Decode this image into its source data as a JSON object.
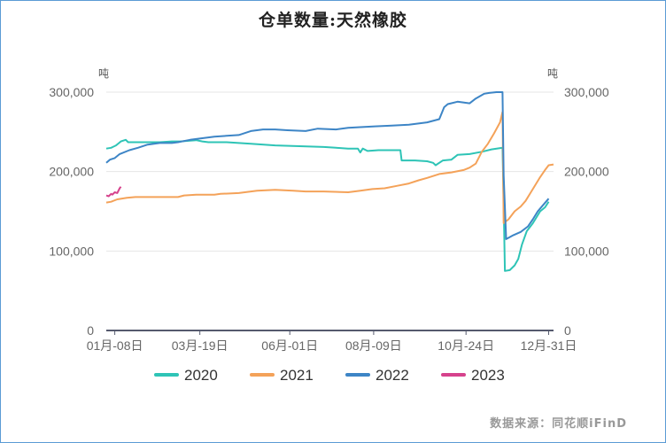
{
  "chart_data": {
    "type": "line",
    "title": "仓单数量:天然橡胶",
    "y_unit_left": "吨",
    "y_unit_right": "吨",
    "ylim": [
      0,
      300000
    ],
    "y_ticks": [
      "0",
      "100,000",
      "200,000",
      "300,000"
    ],
    "x_ticks": [
      "01月-08日",
      "03月-19日",
      "06月-01日",
      "08月-09日",
      "10月-24日",
      "12月-31日"
    ],
    "x_tick_days": [
      8,
      78,
      152,
      221,
      297,
      365
    ],
    "legend_position": "bottom",
    "grid": true,
    "source": "数据来源：同花顺iFinD",
    "series": [
      {
        "name": "2020",
        "color": "#2ec4b6",
        "points": [
          [
            1,
            229000
          ],
          [
            5,
            230000
          ],
          [
            9,
            233000
          ],
          [
            13,
            238000
          ],
          [
            17,
            240000
          ],
          [
            19,
            237000
          ],
          [
            25,
            237000
          ],
          [
            35,
            237000
          ],
          [
            45,
            237000
          ],
          [
            55,
            238000
          ],
          [
            62,
            238000
          ],
          [
            70,
            239000
          ],
          [
            75,
            239500
          ],
          [
            80,
            238000
          ],
          [
            85,
            237000
          ],
          [
            100,
            237000
          ],
          [
            120,
            235000
          ],
          [
            140,
            233000
          ],
          [
            160,
            232000
          ],
          [
            180,
            231000
          ],
          [
            190,
            230000
          ],
          [
            200,
            229000
          ],
          [
            208,
            229000
          ],
          [
            210,
            224000
          ],
          [
            212,
            229000
          ],
          [
            216,
            226000
          ],
          [
            225,
            227000
          ],
          [
            235,
            227000
          ],
          [
            243,
            227000
          ],
          [
            244,
            214000
          ],
          [
            255,
            214000
          ],
          [
            265,
            213000
          ],
          [
            270,
            211000
          ],
          [
            272,
            208000
          ],
          [
            278,
            214000
          ],
          [
            285,
            215000
          ],
          [
            290,
            221000
          ],
          [
            300,
            222000
          ],
          [
            310,
            225000
          ],
          [
            318,
            228000
          ],
          [
            327,
            230000
          ],
          [
            328,
            160000
          ],
          [
            329,
            75000
          ],
          [
            333,
            76000
          ],
          [
            337,
            82000
          ],
          [
            340,
            90000
          ],
          [
            343,
            108000
          ],
          [
            347,
            125000
          ],
          [
            352,
            135000
          ],
          [
            358,
            150000
          ],
          [
            362,
            155000
          ],
          [
            365,
            162000
          ]
        ]
      },
      {
        "name": "2021",
        "color": "#f4a259",
        "points": [
          [
            1,
            161000
          ],
          [
            5,
            162000
          ],
          [
            10,
            165000
          ],
          [
            18,
            167000
          ],
          [
            25,
            168000
          ],
          [
            35,
            168000
          ],
          [
            50,
            168000
          ],
          [
            60,
            168000
          ],
          [
            65,
            170000
          ],
          [
            75,
            171000
          ],
          [
            90,
            171000
          ],
          [
            95,
            172000
          ],
          [
            110,
            173000
          ],
          [
            125,
            176000
          ],
          [
            140,
            177000
          ],
          [
            155,
            176000
          ],
          [
            165,
            175000
          ],
          [
            180,
            175000
          ],
          [
            200,
            174000
          ],
          [
            210,
            176000
          ],
          [
            220,
            178000
          ],
          [
            230,
            179000
          ],
          [
            240,
            182000
          ],
          [
            250,
            185000
          ],
          [
            258,
            189000
          ],
          [
            265,
            192000
          ],
          [
            275,
            197000
          ],
          [
            285,
            199000
          ],
          [
            295,
            202000
          ],
          [
            300,
            205000
          ],
          [
            305,
            210000
          ],
          [
            310,
            225000
          ],
          [
            315,
            235000
          ],
          [
            320,
            248000
          ],
          [
            325,
            262000
          ],
          [
            327,
            275000
          ],
          [
            328,
            135000
          ],
          [
            332,
            140000
          ],
          [
            337,
            150000
          ],
          [
            342,
            156000
          ],
          [
            346,
            163000
          ],
          [
            350,
            173000
          ],
          [
            354,
            183000
          ],
          [
            358,
            193000
          ],
          [
            362,
            202000
          ],
          [
            365,
            208000
          ],
          [
            369,
            209000
          ]
        ]
      },
      {
        "name": "2022",
        "color": "#3d85c6",
        "points": [
          [
            1,
            211000
          ],
          [
            4,
            215000
          ],
          [
            8,
            217000
          ],
          [
            12,
            222000
          ],
          [
            20,
            227000
          ],
          [
            27,
            230000
          ],
          [
            35,
            234000
          ],
          [
            45,
            236000
          ],
          [
            55,
            236000
          ],
          [
            60,
            237000
          ],
          [
            70,
            240000
          ],
          [
            80,
            242000
          ],
          [
            90,
            244000
          ],
          [
            110,
            246000
          ],
          [
            120,
            251000
          ],
          [
            130,
            253000
          ],
          [
            140,
            253000
          ],
          [
            150,
            252000
          ],
          [
            165,
            251000
          ],
          [
            175,
            254000
          ],
          [
            190,
            253000
          ],
          [
            200,
            255000
          ],
          [
            210,
            256000
          ],
          [
            222,
            257000
          ],
          [
            236,
            258000
          ],
          [
            250,
            259000
          ],
          [
            265,
            262000
          ],
          [
            275,
            266000
          ],
          [
            279,
            281000
          ],
          [
            282,
            285000
          ],
          [
            290,
            288000
          ],
          [
            300,
            286000
          ],
          [
            305,
            292000
          ],
          [
            312,
            298000
          ],
          [
            316,
            299000
          ],
          [
            322,
            300000
          ],
          [
            327,
            300000
          ],
          [
            328,
            195000
          ],
          [
            330,
            115000
          ],
          [
            336,
            120000
          ],
          [
            342,
            124000
          ],
          [
            348,
            131000
          ],
          [
            352,
            140000
          ],
          [
            356,
            150000
          ],
          [
            360,
            157000
          ],
          [
            365,
            166000
          ]
        ]
      },
      {
        "name": "2023",
        "color": "#d6428c",
        "points": [
          [
            1,
            170000
          ],
          [
            3,
            169000
          ],
          [
            5,
            172000
          ],
          [
            6,
            171000
          ],
          [
            8,
            174000
          ],
          [
            10,
            173000
          ],
          [
            12,
            179000
          ],
          [
            13,
            181000
          ]
        ]
      }
    ]
  }
}
